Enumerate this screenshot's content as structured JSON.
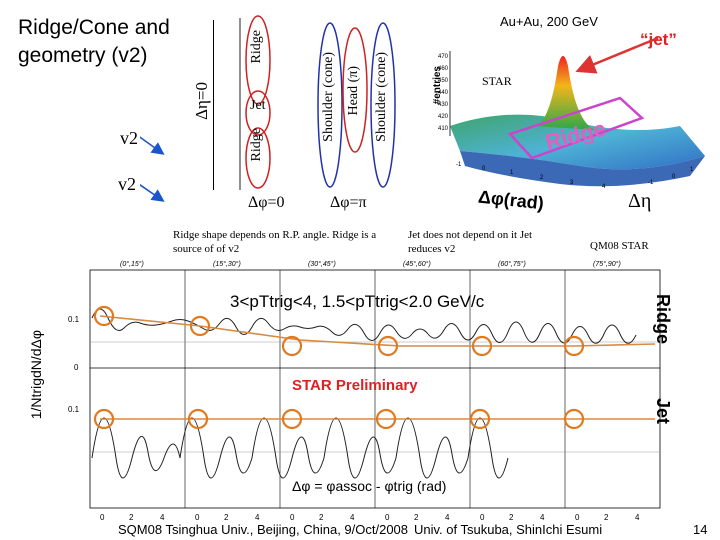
{
  "slide": {
    "title": "Ridge/Cone and geometry (v2)",
    "deta_label": "Δη=0",
    "v2_upper": "v2",
    "v2_lower": "v2",
    "ridge_top": "Ridge",
    "jet": "Jet",
    "ridge_bottom": "Ridge",
    "shoulder_left": "Shoulder (cone)",
    "head": "Head (π)",
    "shoulder_right": "Shoulder (cone)",
    "dphi0": "Δφ=0",
    "dphipi": "Δφ=π",
    "collision": "Au+Au, 200 GeV",
    "jet_quote": "“jet”",
    "star": "STAR",
    "ridge_3d": "Ridge",
    "entries_label": "#entries",
    "dphi_rad": "Δφ(rad)",
    "deta_axis": "Δη",
    "note_ridge": "Ridge shape depends on R.P. angle. Ridge is a source of of v2",
    "note_jet": "Jet does not depend on it Jet reduces v2",
    "qm08": "QM08 STAR",
    "pt_cut": "3<pTtrig<4, 1.5<pTtrig<2.0 GeV/c",
    "ridge_side": "Ridge",
    "jet_side": "Jet",
    "star_prelim": "STAR Preliminary",
    "yaxis": "1/NtrigdN/dΔφ",
    "xaxis": "Δφ = φassoc - φtrig (rad)",
    "footer_left": "SQM08 Tsinghua Univ., Beijing, China, 9/Oct/2008",
    "footer_mid": "Univ. of Tsukuba, ShinIchi Esumi",
    "page": "14",
    "panel_labels": [
      "(0°,15°)",
      "(15°,30°)",
      "(30°,45°)",
      "(45°,60°)",
      "(60°,75°)",
      "(75°,90°)"
    ],
    "tick_y1": "0.1",
    "tick_y0": "0",
    "tick_y2": "0.1",
    "xticks": [
      "0",
      "2",
      "4",
      "0",
      "2",
      "4",
      "0",
      "2",
      "4",
      "0",
      "2",
      "4",
      "0",
      "2",
      "4",
      "0",
      "2",
      "4"
    ]
  },
  "colors": {
    "v2_arrow": "#1a55cc",
    "ellipse_red": "#cc2222",
    "ellipse_blue": "#2233aa",
    "jet_arrow": "#dd3333",
    "ridge_box": "#cc44cc",
    "fit_line": "#d98a40",
    "circle": "#e07a20"
  }
}
